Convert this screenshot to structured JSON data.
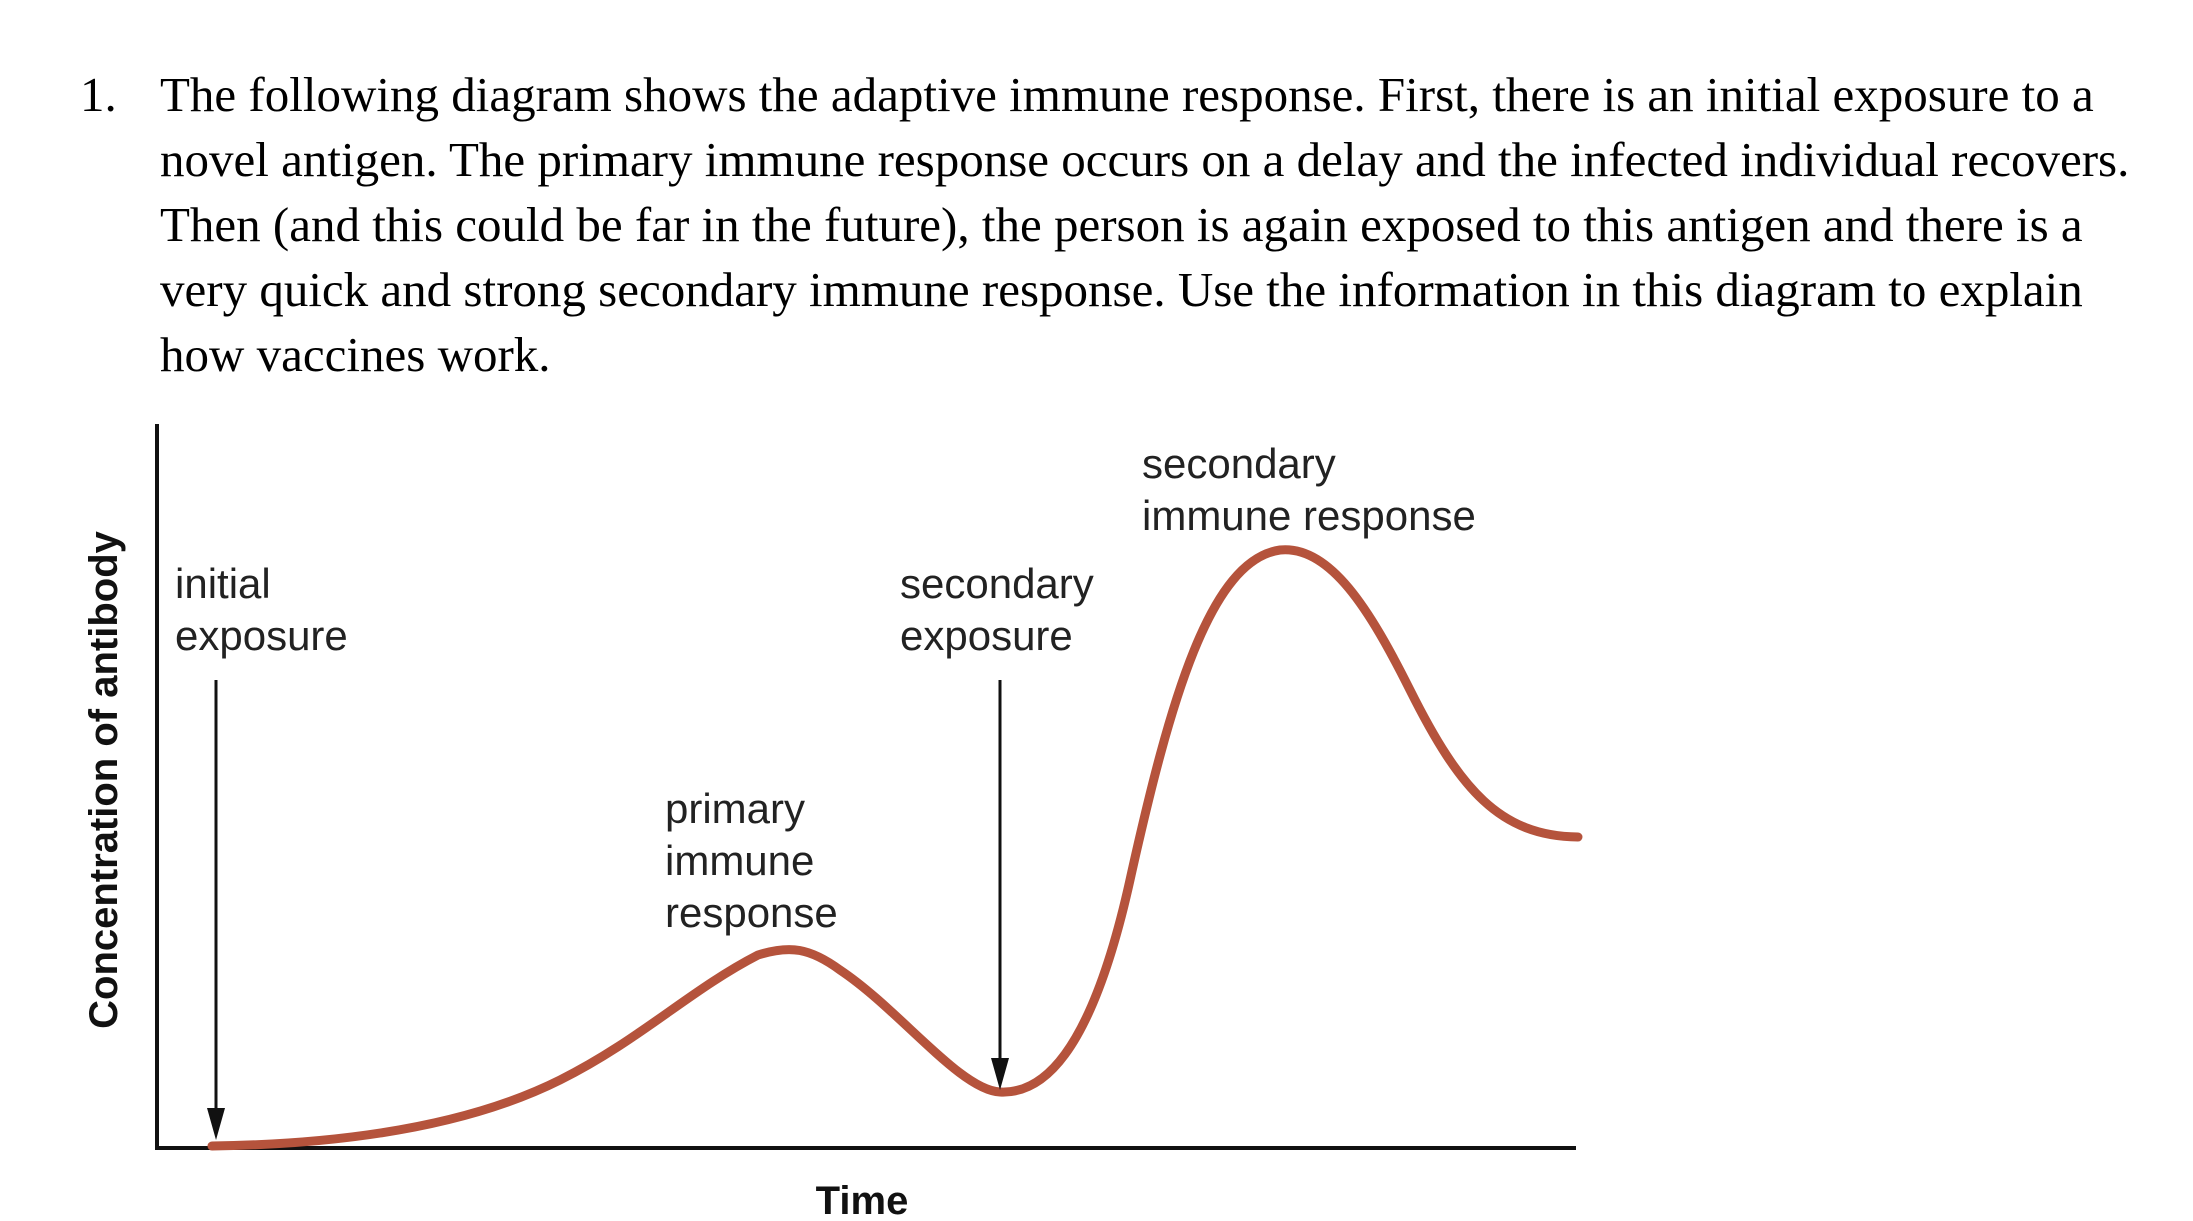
{
  "question": {
    "number": "1.",
    "text": "The following diagram shows the adaptive immune response. First, there is an initial exposure to a novel antigen. The primary immune response occurs on a delay and the infected individual recovers. Then (and this could be far in the future), the person is again exposed to this antigen and there is a very quick and strong secondary immune response. Use the information in this diagram to explain how vaccines work."
  },
  "diagram": {
    "y_axis_title": "Concentration of antibody",
    "x_axis_title": "Time",
    "labels": {
      "initial_exposure_line1": "initial",
      "initial_exposure_line2": "exposure",
      "secondary_exposure_line1": "secondary",
      "secondary_exposure_line2": "exposure",
      "primary_response_line1": "primary",
      "primary_response_line2": "immune",
      "primary_response_line3": "response",
      "secondary_response_line1": "secondary",
      "secondary_response_line2": "immune response"
    },
    "colors": {
      "curve": "#b5533c",
      "axes": "#111111",
      "arrows": "#111111"
    }
  }
}
